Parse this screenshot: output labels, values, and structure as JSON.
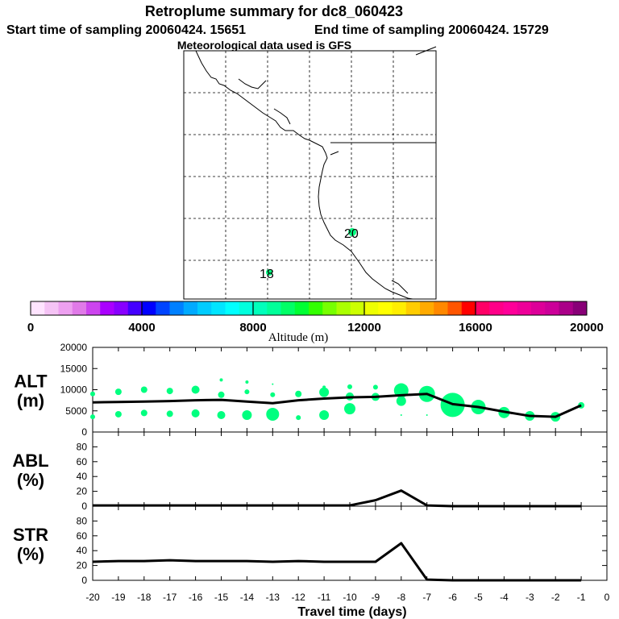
{
  "header": {
    "title": "Retroplume summary for dc8_060423",
    "start_label": "Start time of sampling 20060424. 15651",
    "end_label": "End time of sampling 20060424. 15729",
    "met_label": "Meteorological data used is GFS"
  },
  "map": {
    "point_labels": [
      "20",
      "18"
    ],
    "point_color": "#00ff7f"
  },
  "colorbar": {
    "title": "Altitude (m)",
    "tick_labels": [
      "0",
      "4000",
      "8000",
      "12000",
      "16000",
      "20000"
    ],
    "colors": [
      "#ffe4ff",
      "#f5c3f5",
      "#eda0f0",
      "#e07ae8",
      "#cc44ee",
      "#aa00ff",
      "#8800ff",
      "#4400ff",
      "#0000ff",
      "#0044ff",
      "#0080ff",
      "#00aaff",
      "#00ccff",
      "#00e5ff",
      "#00ffff",
      "#00ffdd",
      "#00ffbb",
      "#00ff99",
      "#00ff66",
      "#00ff33",
      "#33ff00",
      "#77ff00",
      "#aaff00",
      "#ccff00",
      "#eeff00",
      "#ffff00",
      "#ffee00",
      "#ffcc00",
      "#ffaa00",
      "#ff8800",
      "#ff5500",
      "#ff0000",
      "#ff0066",
      "#ff0088",
      "#ff0099",
      "#ee0099",
      "#dd0099",
      "#cc0099",
      "#aa0088",
      "#880077"
    ]
  },
  "chart_data": [
    {
      "type": "line",
      "panel": "ALT",
      "ylabel_line1": "ALT",
      "ylabel_line2": "(m)",
      "ylim": [
        0,
        20000
      ],
      "y_ticks": [
        "0",
        "5000",
        "10000",
        "15000",
        "20000"
      ],
      "x": [
        -20,
        -19,
        -18,
        -17,
        -16,
        -15,
        -14,
        -13,
        -12,
        -11,
        -10,
        -9,
        -8,
        -7,
        -6,
        -5,
        -4,
        -3,
        -2,
        -1
      ],
      "values": [
        7000,
        7100,
        7200,
        7300,
        7500,
        7600,
        7200,
        6800,
        7500,
        7900,
        8200,
        8300,
        8700,
        9000,
        6600,
        5900,
        4800,
        3800,
        3600,
        6300
      ],
      "scatter": [
        [
          -20,
          9000,
          3
        ],
        [
          -20,
          3600,
          3
        ],
        [
          -19,
          9500,
          4
        ],
        [
          -19,
          4200,
          4
        ],
        [
          -18,
          10000,
          4
        ],
        [
          -18,
          4500,
          4
        ],
        [
          -17,
          9700,
          4
        ],
        [
          -17,
          4300,
          4
        ],
        [
          -16,
          10000,
          5
        ],
        [
          -16,
          4400,
          5
        ],
        [
          -15,
          12300,
          2
        ],
        [
          -15,
          8800,
          4
        ],
        [
          -15,
          4000,
          5
        ],
        [
          -14,
          11800,
          2
        ],
        [
          -14,
          9500,
          3
        ],
        [
          -14,
          4000,
          6
        ],
        [
          -13,
          11300,
          1
        ],
        [
          -13,
          8800,
          3
        ],
        [
          -13,
          4200,
          8
        ],
        [
          -12,
          3400,
          3
        ],
        [
          -12,
          9000,
          4
        ],
        [
          -11,
          10600,
          2
        ],
        [
          -11,
          9400,
          6
        ],
        [
          -11,
          4000,
          6
        ],
        [
          -10,
          10700,
          3
        ],
        [
          -10,
          8400,
          5
        ],
        [
          -10,
          5500,
          7
        ],
        [
          -9,
          10600,
          3
        ],
        [
          -9,
          8300,
          5
        ],
        [
          -8,
          9800,
          9
        ],
        [
          -8,
          7300,
          6
        ],
        [
          -8,
          4000,
          1
        ],
        [
          -7,
          9000,
          10
        ],
        [
          -7,
          4000,
          1
        ],
        [
          -6,
          6400,
          15
        ],
        [
          -5,
          5900,
          9
        ],
        [
          -4,
          4600,
          7
        ],
        [
          -3,
          3800,
          6
        ],
        [
          -2,
          3600,
          6
        ],
        [
          -1,
          6300,
          4
        ]
      ]
    },
    {
      "type": "line",
      "panel": "ABL",
      "ylabel_line1": "ABL",
      "ylabel_line2": "(%)",
      "ylim": [
        0,
        100
      ],
      "y_ticks": [
        "0",
        "20",
        "40",
        "60",
        "80"
      ],
      "x": [
        -20,
        -19,
        -18,
        -17,
        -16,
        -15,
        -14,
        -13,
        -12,
        -11,
        -10,
        -9,
        -8,
        -7,
        -6,
        -5,
        -4,
        -3,
        -2,
        -1
      ],
      "values": [
        1,
        1,
        1,
        1,
        1,
        1,
        1,
        1,
        1,
        1,
        1,
        8,
        21,
        1,
        0,
        0,
        0,
        0,
        0,
        0
      ]
    },
    {
      "type": "line",
      "panel": "STR",
      "ylabel_line1": "STR",
      "ylabel_line2": "(%)",
      "ylim": [
        0,
        100
      ],
      "y_ticks": [
        "0",
        "20",
        "40",
        "60",
        "80"
      ],
      "x": [
        -20,
        -19,
        -18,
        -17,
        -16,
        -15,
        -14,
        -13,
        -12,
        -11,
        -10,
        -9,
        -8,
        -7,
        -6,
        -5,
        -4,
        -3,
        -2,
        -1
      ],
      "values": [
        25,
        26,
        26,
        27,
        26,
        26,
        26,
        25,
        26,
        25,
        25,
        25,
        50,
        1,
        0,
        0,
        0,
        0,
        0,
        0
      ],
      "xlabel": "Travel time (days)",
      "x_ticks": [
        "-20",
        "-19",
        "-18",
        "-17",
        "-16",
        "-15",
        "-14",
        "-13",
        "-12",
        "-11",
        "-10",
        "-9",
        "-8",
        "-7",
        "-6",
        "-5",
        "-4",
        "-3",
        "-2",
        "-1",
        "0"
      ]
    }
  ]
}
